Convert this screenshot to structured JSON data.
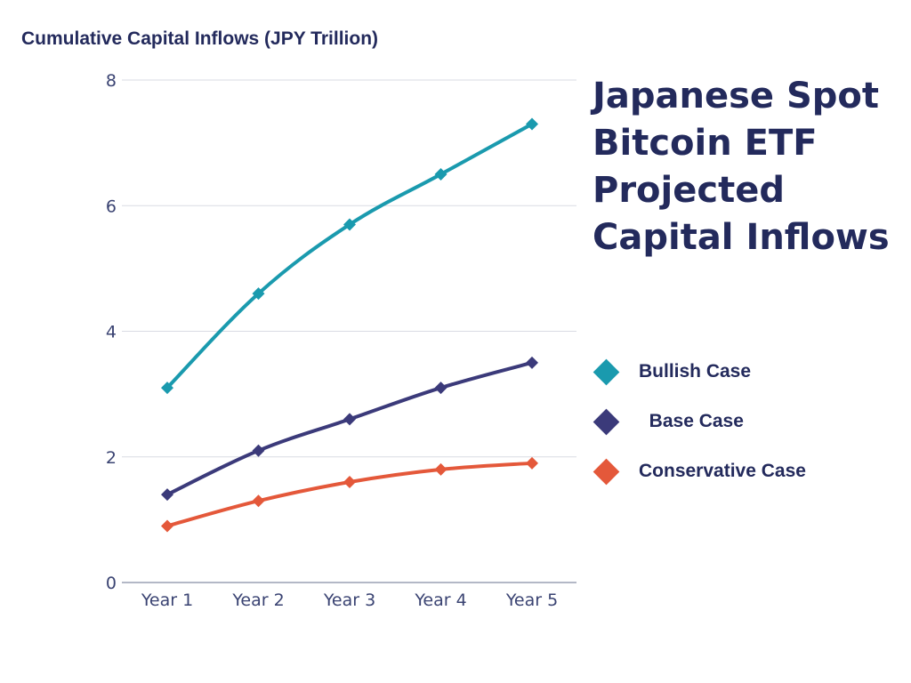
{
  "chart_data": {
    "type": "line",
    "title": "Japanese Spot Bitcoin ETF Projected Capital Inflows",
    "ylabel": "Cumulative Capital Inflows (JPY Trillion)",
    "xlabel": "",
    "categories": [
      "Year 1",
      "Year 2",
      "Year 3",
      "Year 4",
      "Year 5"
    ],
    "ylim": [
      0,
      8
    ],
    "yticks": [
      "0",
      "2",
      "4",
      "6",
      "8"
    ],
    "grid": true,
    "legend_position": "right",
    "series": [
      {
        "name": "Bullish Case",
        "legend_label": "Bullish Case",
        "color": "#1a9aae",
        "values": [
          3.1,
          4.6,
          5.7,
          6.5,
          7.3
        ]
      },
      {
        "name": "Base Case",
        "legend_label": "  Base Case",
        "color": "#3b3a7a",
        "values": [
          1.4,
          2.1,
          2.6,
          3.1,
          3.5
        ]
      },
      {
        "name": "Conservative Case",
        "legend_label": "Conservative Case",
        "color": "#e4583a",
        "values": [
          0.9,
          1.3,
          1.6,
          1.8,
          1.9
        ]
      }
    ]
  }
}
